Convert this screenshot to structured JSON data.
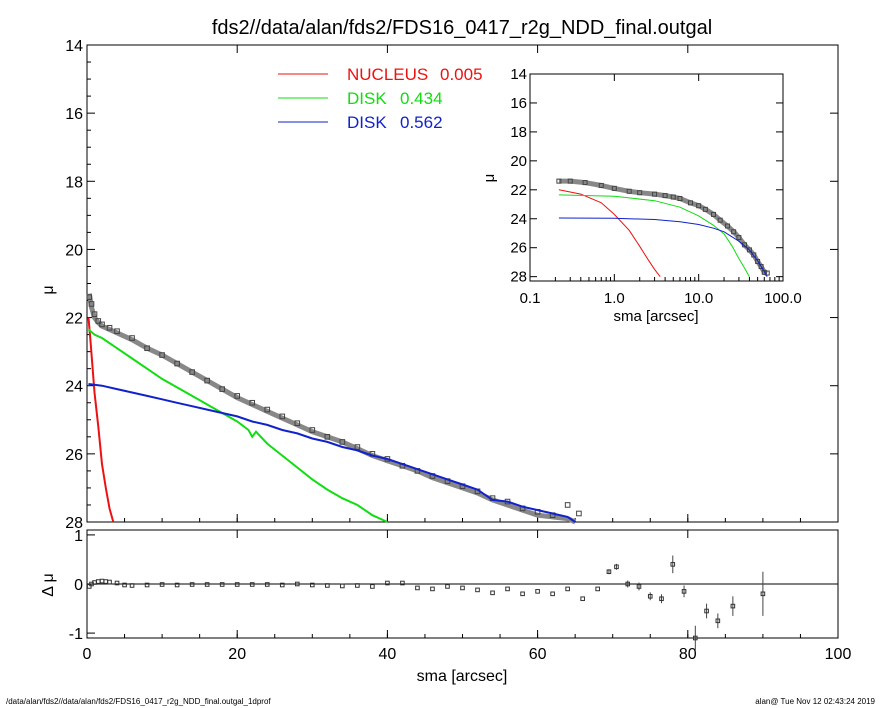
{
  "title": "fds2//data/alan/fds2/FDS16_0417_r2g_NDD_final.outgal",
  "footer": {
    "left": "/data/alan/fds2//data/alan/fds2/FDS16_0417_r2g_NDD_final.outgal_1dprof",
    "right": "alan@  Tue Nov 12 02:43:24 2019"
  },
  "colors": {
    "nucleus": "#ee1111",
    "disk1": "#11dd11",
    "disk2": "#1122cc",
    "data": "#555555"
  },
  "legend": [
    {
      "label": "NUCLEUS",
      "value": "0.005",
      "color": "#ee1111"
    },
    {
      "label": "DISK",
      "value": "0.434",
      "color": "#11dd11"
    },
    {
      "label": "DISK",
      "value": "0.562",
      "color": "#1122cc"
    }
  ],
  "chart_data": [
    {
      "type": "scatter",
      "panel": "main",
      "ylabel": "μ",
      "xlim": [
        0,
        100
      ],
      "ylim": [
        28,
        14
      ],
      "yticks": [
        "14",
        "16",
        "18",
        "20",
        "22",
        "24",
        "26",
        "28"
      ],
      "observed": {
        "x": [
          0.3,
          0.6,
          1,
          1.5,
          2,
          3,
          4,
          6,
          8,
          10,
          12,
          14,
          16,
          18,
          20,
          22,
          24,
          26,
          28,
          30,
          32,
          34,
          36,
          38,
          40,
          42,
          44,
          46,
          48,
          50,
          52,
          54,
          56,
          58,
          60,
          62,
          64,
          65.5
        ],
        "y": [
          21.4,
          21.6,
          21.9,
          22.1,
          22.2,
          22.3,
          22.4,
          22.6,
          22.9,
          23.1,
          23.35,
          23.6,
          23.85,
          24.1,
          24.3,
          24.5,
          24.7,
          24.9,
          25.1,
          25.3,
          25.5,
          25.65,
          25.8,
          26.0,
          26.15,
          26.35,
          26.5,
          26.65,
          26.8,
          26.95,
          27.1,
          27.3,
          27.4,
          27.6,
          27.7,
          27.8,
          27.5,
          27.75
        ]
      },
      "model": {
        "x": [
          0.3,
          0.6,
          1,
          1.5,
          2,
          3,
          4,
          6,
          8,
          10,
          12,
          14,
          16,
          18,
          20,
          22,
          24,
          26,
          28,
          30,
          32,
          34,
          36,
          38,
          40,
          42,
          44,
          46,
          48,
          50,
          52,
          54,
          56,
          58,
          60,
          62,
          64,
          65
        ],
        "y": [
          21.3,
          21.7,
          22.0,
          22.15,
          22.25,
          22.35,
          22.45,
          22.65,
          22.9,
          23.1,
          23.35,
          23.6,
          23.85,
          24.1,
          24.35,
          24.55,
          24.75,
          24.95,
          25.15,
          25.35,
          25.5,
          25.65,
          25.85,
          26.05,
          26.2,
          26.35,
          26.5,
          26.7,
          26.85,
          27.0,
          27.15,
          27.35,
          27.5,
          27.65,
          27.8,
          27.85,
          27.9,
          28.0
        ]
      },
      "series": [
        {
          "name": "NUCLEUS 0.005",
          "color": "#ee1111",
          "x": [
            0.2,
            0.5,
            1,
            1.5,
            2,
            2.5,
            3,
            3.5
          ],
          "y": [
            22.0,
            22.8,
            24.2,
            25.2,
            26.3,
            27.0,
            27.6,
            28.0
          ]
        },
        {
          "name": "DISK 0.434",
          "color": "#11dd11",
          "x": [
            0.2,
            1,
            2,
            4,
            6,
            8,
            10,
            12,
            14,
            16,
            18,
            20,
            21.5,
            22,
            22.5,
            24,
            26,
            28,
            30,
            32,
            34,
            36,
            38,
            40
          ],
          "y": [
            22.35,
            22.5,
            22.6,
            22.9,
            23.2,
            23.5,
            23.8,
            24.05,
            24.3,
            24.55,
            24.8,
            25.05,
            25.3,
            25.5,
            25.35,
            25.7,
            26.05,
            26.4,
            26.75,
            27.05,
            27.3,
            27.5,
            27.8,
            28.0
          ]
        },
        {
          "name": "DISK 0.562",
          "color": "#1122cc",
          "x": [
            0.2,
            2,
            4,
            6,
            8,
            10,
            12,
            14,
            16,
            18,
            20,
            22,
            24,
            26,
            28,
            30,
            32,
            34,
            36,
            38,
            40,
            42,
            44,
            46,
            48,
            50,
            52,
            54,
            56,
            58,
            60,
            62,
            64,
            65
          ],
          "y": [
            23.95,
            24.0,
            24.1,
            24.2,
            24.3,
            24.4,
            24.5,
            24.6,
            24.7,
            24.8,
            24.9,
            25.05,
            25.15,
            25.3,
            25.4,
            25.55,
            25.65,
            25.8,
            25.9,
            26.05,
            26.15,
            26.3,
            26.45,
            26.6,
            26.75,
            26.9,
            27.05,
            27.35,
            27.4,
            27.55,
            27.65,
            27.75,
            27.85,
            28.0
          ]
        }
      ]
    },
    {
      "type": "scatter",
      "panel": "residual",
      "xlabel": "sma [arcsec]",
      "ylabel": "Δ μ",
      "xlim": [
        0,
        100
      ],
      "ylim": [
        -1.1,
        1.1
      ],
      "xticks": [
        "0",
        "20",
        "40",
        "60",
        "80",
        "100"
      ],
      "yticks": [
        "1",
        "0",
        "-1"
      ],
      "residual": {
        "x": [
          0.3,
          0.6,
          1,
          1.5,
          2,
          2.5,
          3,
          4,
          5,
          6,
          8,
          10,
          12,
          14,
          16,
          18,
          20,
          22,
          24,
          26,
          28,
          30,
          32,
          34,
          36,
          38,
          40,
          42,
          44,
          46,
          48,
          50,
          52,
          54,
          56,
          58,
          60,
          62,
          64,
          66,
          68,
          69.5,
          70.5,
          72,
          73.5,
          75,
          76.5,
          78,
          79.5,
          81,
          82.5,
          84,
          86,
          90
        ],
        "y": [
          -0.05,
          0.0,
          0.03,
          0.05,
          0.06,
          0.05,
          0.04,
          0.02,
          -0.02,
          -0.03,
          -0.02,
          -0.01,
          -0.02,
          -0.01,
          -0.01,
          -0.01,
          -0.01,
          -0.01,
          -0.01,
          -0.02,
          0.0,
          -0.02,
          -0.03,
          -0.04,
          -0.03,
          -0.05,
          0.02,
          0.02,
          -0.08,
          -0.1,
          -0.05,
          -0.08,
          -0.12,
          -0.18,
          -0.1,
          -0.2,
          -0.15,
          -0.2,
          -0.1,
          -0.3,
          -0.1,
          0.25,
          0.35,
          0.0,
          -0.05,
          -0.25,
          -0.3,
          0.4,
          -0.15,
          -1.1,
          -0.55,
          -0.75,
          -0.45,
          -0.2
        ],
        "err": [
          0,
          0,
          0,
          0,
          0,
          0,
          0,
          0,
          0,
          0,
          0,
          0,
          0,
          0,
          0,
          0,
          0,
          0,
          0,
          0,
          0,
          0,
          0,
          0,
          0,
          0,
          0,
          0,
          0,
          0,
          0,
          0,
          0,
          0,
          0,
          0,
          0,
          0,
          0,
          0,
          0,
          0.05,
          0.06,
          0.07,
          0.08,
          0.08,
          0.09,
          0.18,
          0.12,
          0.25,
          0.15,
          0.15,
          0.2,
          0.45
        ]
      }
    },
    {
      "type": "scatter",
      "panel": "inset",
      "xlabel": "sma [arcsec]",
      "ylabel": "μ",
      "xscale": "log",
      "xlim": [
        0.1,
        100
      ],
      "ylim": [
        28.3,
        14
      ],
      "xticks": [
        "0.1",
        "1.0",
        "10.0",
        "100.0"
      ],
      "yticks": [
        "14",
        "16",
        "18",
        "20",
        "22",
        "24",
        "26",
        "28"
      ],
      "observed": {
        "x": [
          0.22,
          0.3,
          0.45,
          0.7,
          1,
          1.5,
          2,
          3,
          4,
          5,
          6,
          8,
          10,
          12,
          15,
          18,
          22,
          26,
          30,
          35,
          40,
          45,
          50,
          55,
          60,
          65
        ],
        "y": [
          21.4,
          21.4,
          21.5,
          21.7,
          21.9,
          22.1,
          22.2,
          22.3,
          22.4,
          22.5,
          22.6,
          22.9,
          23.1,
          23.35,
          23.7,
          24.1,
          24.5,
          24.9,
          25.3,
          25.8,
          26.15,
          26.5,
          26.95,
          27.3,
          27.7,
          27.75
        ]
      },
      "series": [
        {
          "name": "NUCLEUS 0.005",
          "color": "#ee1111",
          "x": [
            0.22,
            0.4,
            0.7,
            1,
            1.5,
            2,
            2.5,
            3,
            3.5
          ],
          "y": [
            22.0,
            22.3,
            22.9,
            23.7,
            24.8,
            25.9,
            26.8,
            27.5,
            28.0
          ]
        },
        {
          "name": "DISK 0.434",
          "color": "#11dd11",
          "x": [
            0.22,
            1,
            3,
            6,
            10,
            15,
            20,
            25,
            30,
            35,
            40
          ],
          "y": [
            22.35,
            22.45,
            22.75,
            23.2,
            23.8,
            24.45,
            25.05,
            25.9,
            26.75,
            27.4,
            28.0
          ]
        },
        {
          "name": "DISK 0.562",
          "color": "#1122cc",
          "x": [
            0.22,
            1,
            3,
            6,
            10,
            15,
            20,
            30,
            40,
            50,
            60,
            65
          ],
          "y": [
            23.95,
            23.97,
            24.05,
            24.2,
            24.4,
            24.65,
            24.9,
            25.55,
            26.15,
            26.9,
            27.65,
            28.0
          ]
        }
      ]
    }
  ]
}
